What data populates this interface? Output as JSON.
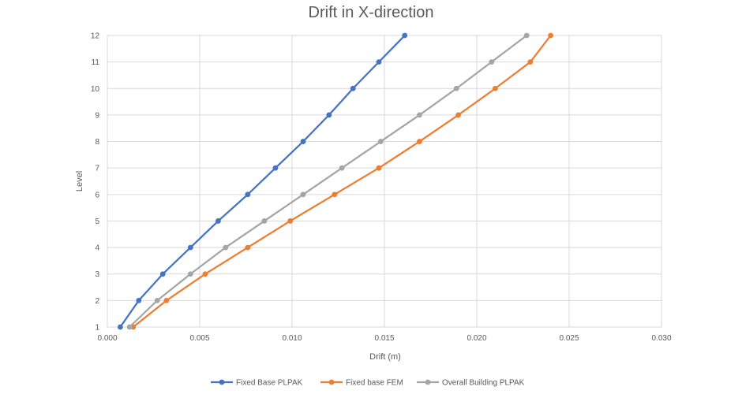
{
  "chart_data": {
    "type": "scatter",
    "title": "Drift in X-direction",
    "xlabel": "Drift (m)",
    "ylabel": "Level",
    "xlim": [
      0,
      0.03
    ],
    "ylim": [
      1,
      12
    ],
    "x_ticks": [
      "0.000",
      "0.005",
      "0.010",
      "0.015",
      "0.020",
      "0.025",
      "0.030"
    ],
    "y_ticks": [
      "1",
      "2",
      "3",
      "4",
      "5",
      "6",
      "7",
      "8",
      "9",
      "10",
      "11",
      "12"
    ],
    "grid": true,
    "legend_position": "bottom",
    "series": [
      {
        "name": "Fixed Base PLPAK",
        "color": "#4472C4",
        "points": [
          [
            0.0007,
            1
          ],
          [
            0.0017,
            2
          ],
          [
            0.003,
            3
          ],
          [
            0.0045,
            4
          ],
          [
            0.006,
            5
          ],
          [
            0.0076,
            6
          ],
          [
            0.0091,
            7
          ],
          [
            0.0106,
            8
          ],
          [
            0.012,
            9
          ],
          [
            0.0133,
            10
          ],
          [
            0.0147,
            11
          ],
          [
            0.0161,
            12
          ]
        ]
      },
      {
        "name": "Fixed base FEM",
        "color": "#ED7D31",
        "points": [
          [
            0.0014,
            1
          ],
          [
            0.0032,
            2
          ],
          [
            0.0053,
            3
          ],
          [
            0.0076,
            4
          ],
          [
            0.0099,
            5
          ],
          [
            0.0123,
            6
          ],
          [
            0.0147,
            7
          ],
          [
            0.0169,
            8
          ],
          [
            0.019,
            9
          ],
          [
            0.021,
            10
          ],
          [
            0.0229,
            11
          ],
          [
            0.024,
            12
          ]
        ]
      },
      {
        "name": "Overall Building PLPAK",
        "color": "#A5A5A5",
        "points": [
          [
            0.0012,
            1
          ],
          [
            0.0027,
            2
          ],
          [
            0.0045,
            3
          ],
          [
            0.0064,
            4
          ],
          [
            0.0085,
            5
          ],
          [
            0.0106,
            6
          ],
          [
            0.0127,
            7
          ],
          [
            0.0148,
            8
          ],
          [
            0.0169,
            9
          ],
          [
            0.0189,
            10
          ],
          [
            0.0208,
            11
          ],
          [
            0.0227,
            12
          ]
        ]
      }
    ]
  }
}
